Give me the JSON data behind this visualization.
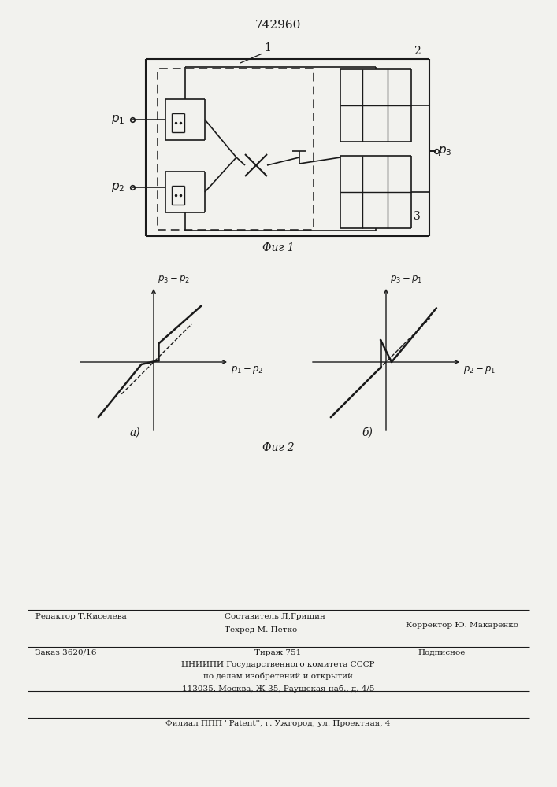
{
  "title": "742960",
  "fig1_caption": "Фиг 1",
  "fig2_caption": "Фиг 2",
  "graph_a_label": "а)",
  "graph_b_label": "б)",
  "footer_line1_left": "Редактор Т.Киселева",
  "footer_line1_center": "Составитель Л,Гришин",
  "footer_line2_center": "Техред М. Петко",
  "footer_line2_right": "Корректор Ю. Макаренко",
  "footer_line3_left": "Заказ 3620/16",
  "footer_line3_center": "Тираж 751",
  "footer_line3_right": "Подписное",
  "footer_line4": "ЦНИИПИ Государственного комитета СССР",
  "footer_line5": "по делам изобретений и открытий",
  "footer_line6": "113035, Москва, Ж-35, Раушская наб., д. 4/5",
  "footer_line7": "Филиал ППП ''Patent'', г. Ужгород, ул. Проектная, 4",
  "bg_color": "#f2f2ee",
  "line_color": "#1a1a1a"
}
